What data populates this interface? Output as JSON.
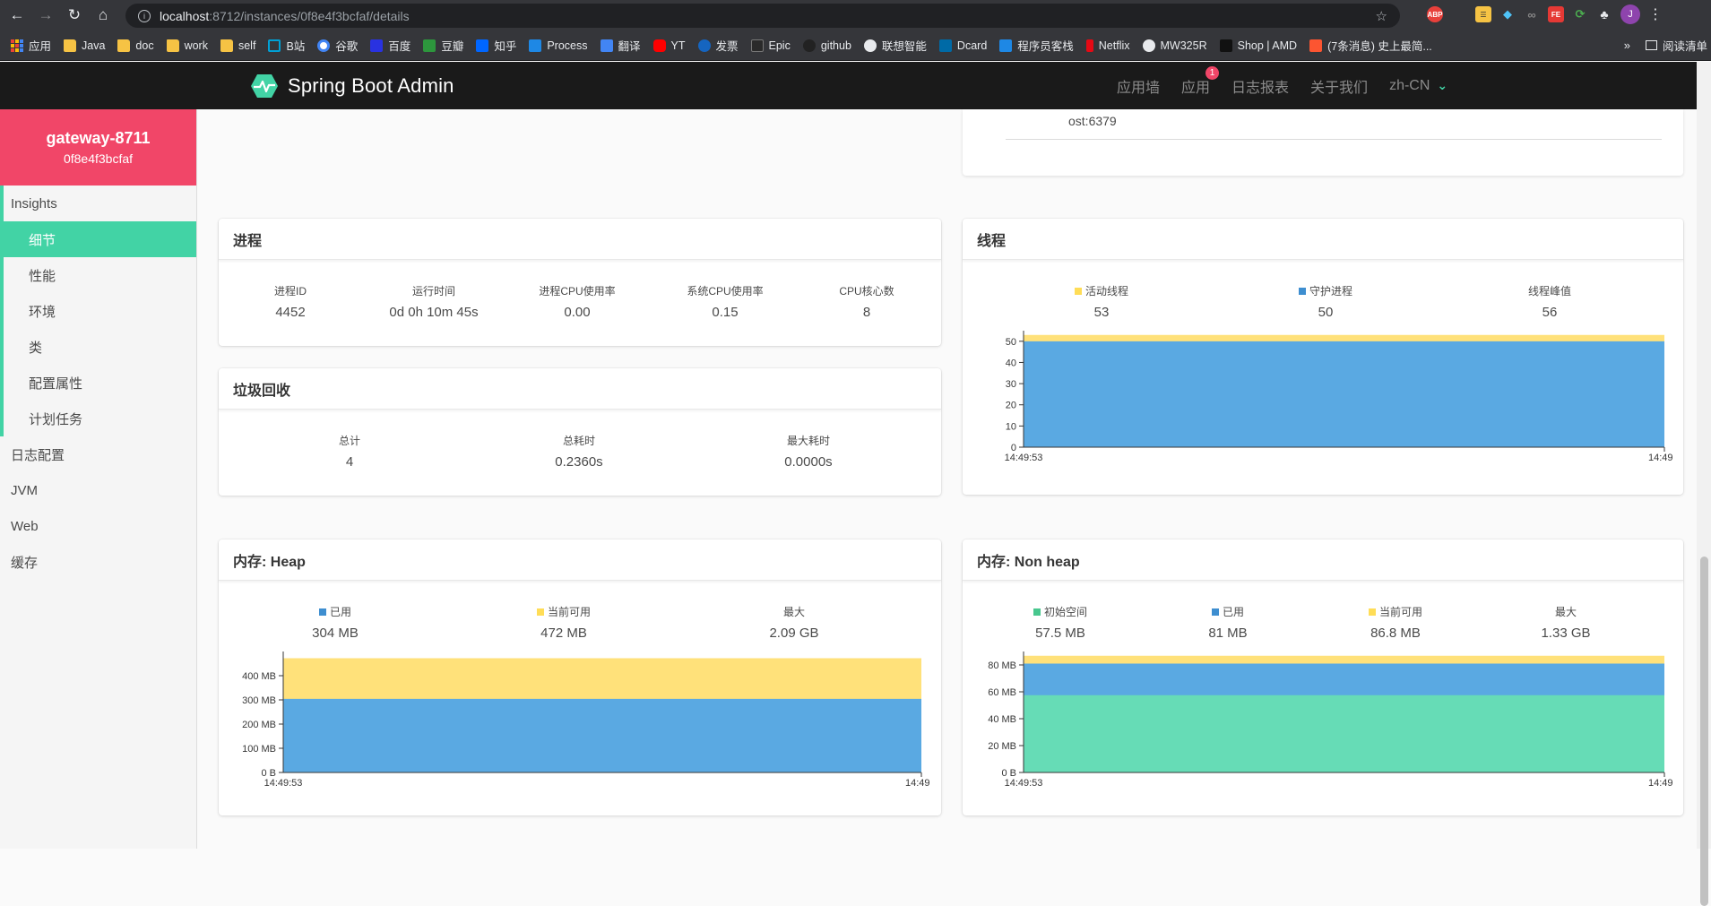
{
  "browser": {
    "url_host": "localhost",
    "url_path": ":8712/instances/0f8e4f3bcfaf/details",
    "bookmarks": [
      "应用",
      "Java",
      "doc",
      "work",
      "self",
      "B站",
      "谷歌",
      "百度",
      "豆瓣",
      "知乎",
      "Process",
      "翻译",
      "YT",
      "发票",
      "Epic",
      "github",
      "联想智能",
      "Dcard",
      "程序员客栈",
      "Netflix",
      "MW325R",
      "Shop | AMD",
      "(7条消息) 史上最简..."
    ],
    "more": "»",
    "reading_list": "阅读清单",
    "profile_initial": "J"
  },
  "header": {
    "brand": "Spring Boot Admin",
    "nav": {
      "wall": "应用墙",
      "apps": "应用",
      "apps_badge": "1",
      "journal": "日志报表",
      "about": "关于我们",
      "lang": "zh-CN"
    }
  },
  "sidebar": {
    "instance_name": "gateway-8711",
    "instance_id": "0f8e4f3bcfaf",
    "insights": "Insights",
    "insights_items": [
      "细节",
      "性能",
      "环境",
      "类",
      "配置属性",
      "计划任务"
    ],
    "items": [
      "日志配置",
      "JVM",
      "Web",
      "缓存"
    ]
  },
  "partial_card": {
    "text": "ost:6379"
  },
  "process": {
    "title": "进程",
    "labels": [
      "进程ID",
      "运行时间",
      "进程CPU使用率",
      "系统CPU使用率",
      "CPU核心数"
    ],
    "values": [
      "4452",
      "0d 0h 10m 45s",
      "0.00",
      "0.15",
      "8"
    ]
  },
  "gc": {
    "title": "垃圾回收",
    "labels": [
      "总计",
      "总耗时",
      "最大耗时"
    ],
    "values": [
      "4",
      "0.2360s",
      "0.0000s"
    ]
  },
  "threads": {
    "title": "线程",
    "labels": [
      "活动线程",
      "守护进程",
      "线程峰值"
    ],
    "values": [
      "53",
      "50",
      "56"
    ],
    "colors": [
      "#ffdd57",
      "#3e8ed0",
      null
    ]
  },
  "heap": {
    "title": "内存: Heap",
    "labels": [
      "已用",
      "当前可用",
      "最大"
    ],
    "values": [
      "304 MB",
      "472 MB",
      "2.09 GB"
    ],
    "colors": [
      "#3e8ed0",
      "#ffdd57",
      null
    ]
  },
  "nonheap": {
    "title": "内存: Non heap",
    "labels": [
      "初始空间",
      "已用",
      "当前可用",
      "最大"
    ],
    "values": [
      "57.5 MB",
      "81 MB",
      "86.8 MB",
      "1.33 GB"
    ],
    "colors": [
      "#48c78e",
      "#3e8ed0",
      "#ffdd57",
      null
    ]
  },
  "chart_data": [
    {
      "name": "threads",
      "type": "area",
      "x": [
        "14:49:53",
        "14:49"
      ],
      "series": [
        {
          "name": "守护进程",
          "values": [
            50,
            50
          ],
          "color": "#5aa9e2"
        },
        {
          "name": "活动线程",
          "values": [
            53,
            53
          ],
          "color": "#ffe17a"
        }
      ],
      "yticks": [
        "0",
        "10",
        "20",
        "30",
        "40",
        "50"
      ],
      "ylim": [
        0,
        55
      ]
    },
    {
      "name": "heap",
      "type": "area",
      "x": [
        "14:49:53",
        "14:49"
      ],
      "series": [
        {
          "name": "已用",
          "values": [
            304,
            304
          ],
          "color": "#5aa9e2"
        },
        {
          "name": "当前可用",
          "values": [
            472,
            472
          ],
          "color": "#ffe17a"
        }
      ],
      "yticks": [
        "0 B",
        "100 MB",
        "200 MB",
        "300 MB",
        "400 MB"
      ],
      "ylim": [
        0,
        500
      ]
    },
    {
      "name": "nonheap",
      "type": "area",
      "x": [
        "14:49:53",
        "14:49"
      ],
      "series": [
        {
          "name": "初始空间",
          "values": [
            57.5,
            57.5
          ],
          "color": "#66dcb6"
        },
        {
          "name": "已用",
          "values": [
            81,
            81
          ],
          "color": "#5aa9e2"
        },
        {
          "name": "当前可用",
          "values": [
            86.8,
            86.8
          ],
          "color": "#ffe17a"
        }
      ],
      "yticks": [
        "0 B",
        "20 MB",
        "40 MB",
        "60 MB",
        "80 MB"
      ],
      "ylim": [
        0,
        90
      ]
    }
  ]
}
